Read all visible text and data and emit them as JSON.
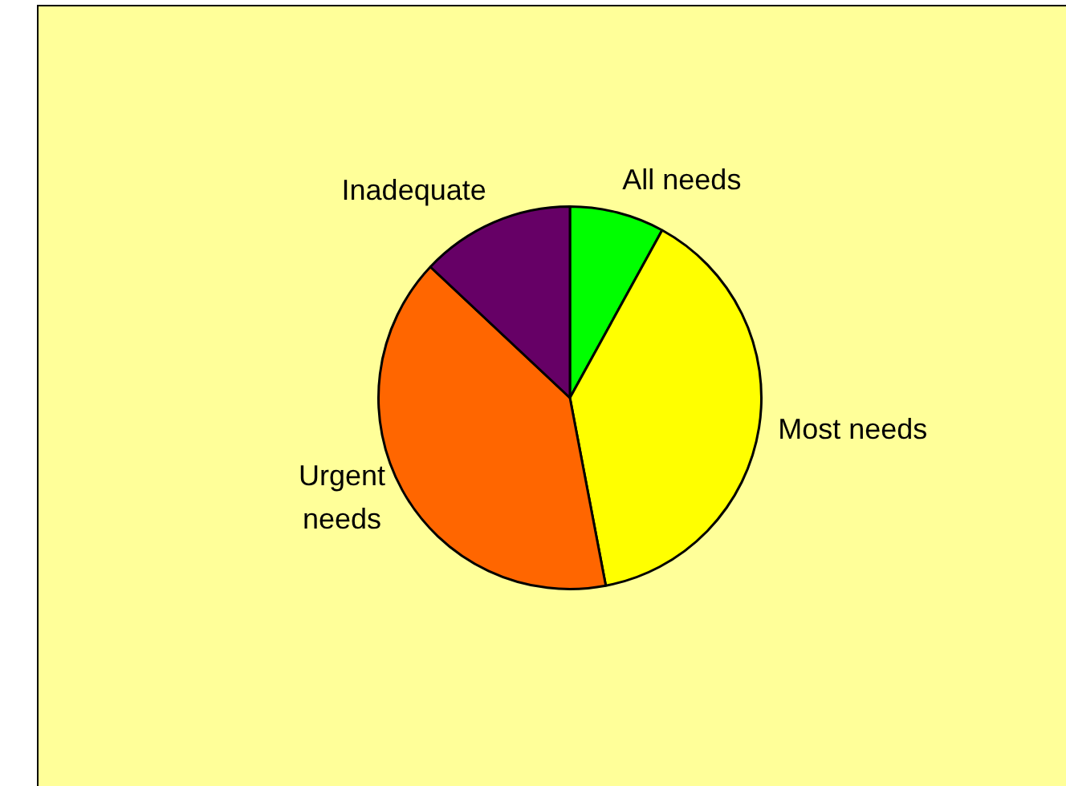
{
  "chart_data": {
    "type": "pie",
    "categories": [
      "All needs",
      "Most needs",
      "Urgent needs",
      "Inadequate"
    ],
    "values": [
      8,
      39,
      40,
      13
    ],
    "colors": [
      "#00ff00",
      "#ffff00",
      "#ff6600",
      "#660066"
    ],
    "legend": false
  }
}
